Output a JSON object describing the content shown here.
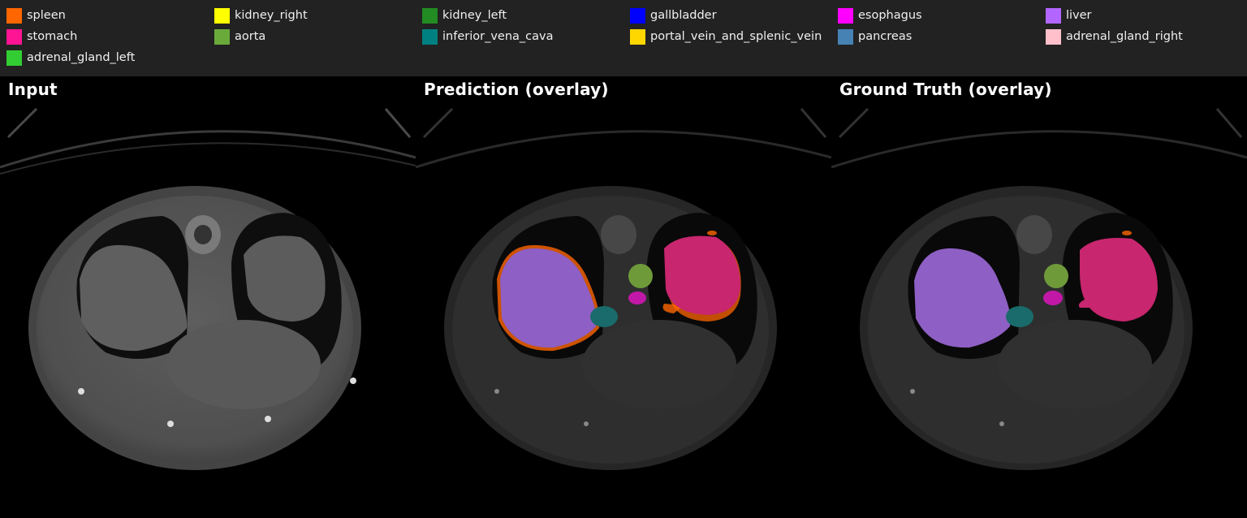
{
  "legend": {
    "items": [
      {
        "label": "spleen",
        "color": "#ff6600"
      },
      {
        "label": "kidney_right",
        "color": "#ffff00"
      },
      {
        "label": "kidney_left",
        "color": "#228b22"
      },
      {
        "label": "gallbladder",
        "color": "#0000ff"
      },
      {
        "label": "esophagus",
        "color": "#ff00ff"
      },
      {
        "label": "liver",
        "color": "#b266ff"
      },
      {
        "label": "stomach",
        "color": "#ff1493"
      },
      {
        "label": "aorta",
        "color": "#6aaa3a"
      },
      {
        "label": "inferior_vena_cava",
        "color": "#008080"
      },
      {
        "label": "portal_vein_and_splenic_vein",
        "color": "#ffd700"
      },
      {
        "label": "pancreas",
        "color": "#4682b4"
      },
      {
        "label": "adrenal_gland_right",
        "color": "#ffc0cb"
      },
      {
        "label": "adrenal_gland_left",
        "color": "#32cd32"
      }
    ]
  },
  "panels": {
    "input": {
      "title": "Input"
    },
    "prediction": {
      "title": "Prediction (overlay)"
    },
    "ground_truth": {
      "title": "Ground Truth (overlay)"
    }
  }
}
